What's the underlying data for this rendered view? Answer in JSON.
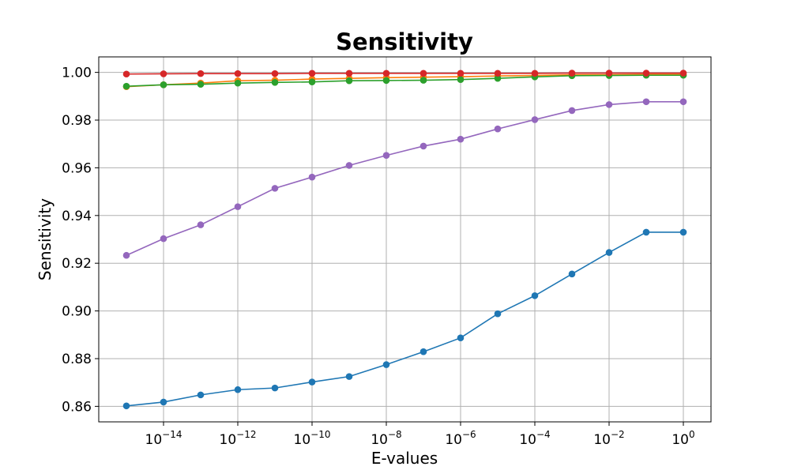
{
  "chart_data": {
    "type": "line",
    "title": "Sensitivity",
    "xlabel": "E-values",
    "ylabel": "Sensitivity",
    "xscale": "log",
    "grid": true,
    "xlim": [
      1e-16,
      1
    ],
    "ylim": [
      0.8535,
      1.0065
    ],
    "x": [
      1e-15,
      1e-14,
      1e-13,
      1e-12,
      1e-11,
      1e-10,
      1e-09,
      1e-08,
      1e-07,
      1e-06,
      1e-05,
      0.0001,
      0.001,
      0.01,
      0.1,
      1
    ],
    "xticks": [
      {
        "value": 1e-14,
        "base": "10",
        "exp": "−14"
      },
      {
        "value": 1e-12,
        "base": "10",
        "exp": "−12"
      },
      {
        "value": 1e-10,
        "base": "10",
        "exp": "−10"
      },
      {
        "value": 1e-08,
        "base": "10",
        "exp": "−8"
      },
      {
        "value": 1e-06,
        "base": "10",
        "exp": "−6"
      },
      {
        "value": 0.0001,
        "base": "10",
        "exp": "−4"
      },
      {
        "value": 0.01,
        "base": "10",
        "exp": "−2"
      },
      {
        "value": 1,
        "base": "10",
        "exp": "0"
      }
    ],
    "yticks": [
      {
        "value": 0.86,
        "label": "0.86"
      },
      {
        "value": 0.88,
        "label": "0.88"
      },
      {
        "value": 0.9,
        "label": "0.90"
      },
      {
        "value": 0.92,
        "label": "0.92"
      },
      {
        "value": 0.94,
        "label": "0.94"
      },
      {
        "value": 0.96,
        "label": "0.96"
      },
      {
        "value": 0.98,
        "label": "0.98"
      },
      {
        "value": 1.0,
        "label": "1.00"
      }
    ],
    "series": [
      {
        "color": "#1f77b4",
        "values": [
          0.8602,
          0.8618,
          0.8648,
          0.867,
          0.8677,
          0.8702,
          0.8725,
          0.8775,
          0.8829,
          0.8887,
          0.8988,
          0.9064,
          0.9155,
          0.9245,
          0.933,
          0.933
        ]
      },
      {
        "color": "#9467bd",
        "values": [
          0.9233,
          0.9303,
          0.9361,
          0.9437,
          0.9514,
          0.9561,
          0.961,
          0.9652,
          0.9691,
          0.972,
          0.9763,
          0.9802,
          0.984,
          0.9865,
          0.9877,
          0.9877
        ]
      },
      {
        "color": "#ff7f0e",
        "values": [
          0.994,
          0.9948,
          0.9955,
          0.9965,
          0.9967,
          0.9972,
          0.9975,
          0.9978,
          0.998,
          0.9982,
          0.9985,
          0.9987,
          0.999,
          0.999,
          0.9991,
          0.9991
        ]
      },
      {
        "color": "#2ca02c",
        "values": [
          0.9942,
          0.9948,
          0.995,
          0.9955,
          0.9958,
          0.996,
          0.9965,
          0.9966,
          0.9967,
          0.997,
          0.9975,
          0.9981,
          0.9986,
          0.9987,
          0.9988,
          0.9988
        ]
      },
      {
        "color": "#d62728",
        "values": [
          0.9993,
          0.9994,
          0.9995,
          0.9995,
          0.9995,
          0.9996,
          0.9996,
          0.9996,
          0.9996,
          0.9996,
          0.9996,
          0.9996,
          0.9997,
          0.9997,
          0.9997,
          0.9997
        ]
      }
    ]
  }
}
